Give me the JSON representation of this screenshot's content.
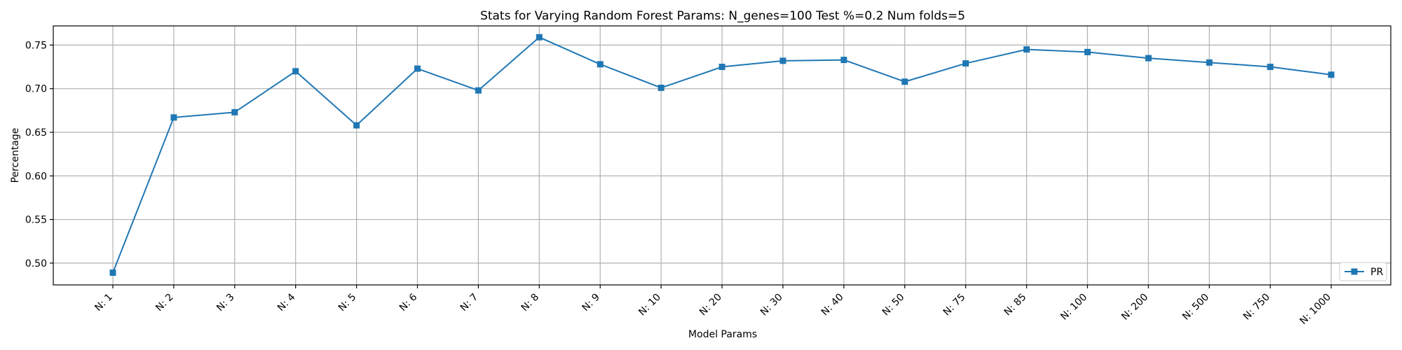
{
  "chart_data": {
    "type": "line",
    "title": "Stats for Varying Random Forest Params: N_genes=100 Test %=0.2 Num folds=5",
    "xlabel": "Model Params",
    "ylabel": "Percentage",
    "categories": [
      "N: 1",
      "N: 2",
      "N: 3",
      "N: 4",
      "N: 5",
      "N: 6",
      "N: 7",
      "N: 8",
      "N: 9",
      "N: 10",
      "N: 20",
      "N: 30",
      "N: 40",
      "N: 50",
      "N: 75",
      "N: 85",
      "N: 100",
      "N: 200",
      "N: 500",
      "N: 750",
      "N: 1000"
    ],
    "series": [
      {
        "name": "PR",
        "color": "#1f77b4",
        "marker": "square",
        "values": [
          0.489,
          0.667,
          0.673,
          0.72,
          0.658,
          0.723,
          0.698,
          0.759,
          0.728,
          0.701,
          0.725,
          0.732,
          0.733,
          0.708,
          0.729,
          0.745,
          0.742,
          0.735,
          0.73,
          0.725,
          0.716
        ]
      }
    ],
    "yticks": [
      "0.50",
      "0.55",
      "0.60",
      "0.65",
      "0.70",
      "0.75"
    ],
    "ylim": [
      0.475,
      0.772
    ],
    "grid": true,
    "legend_position": "lower-right"
  }
}
